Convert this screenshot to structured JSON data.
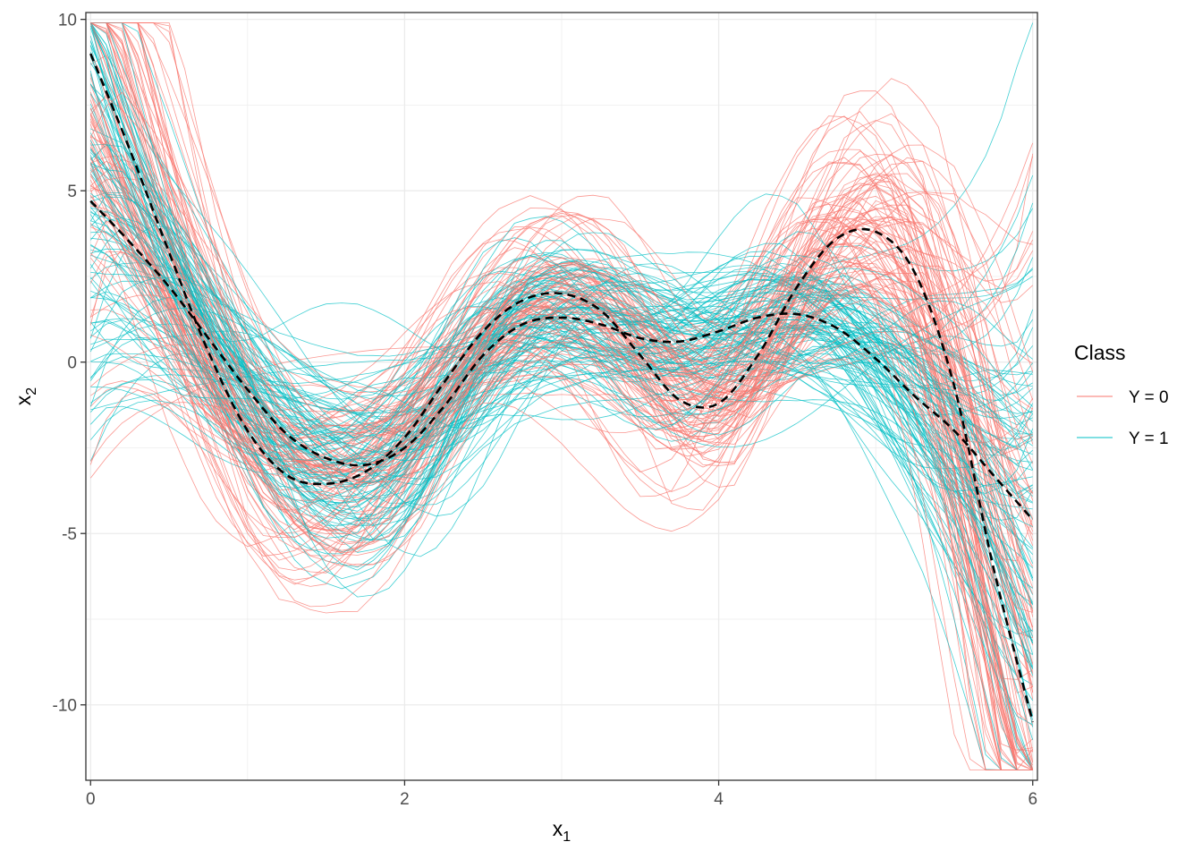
{
  "chart_data": {
    "type": "line",
    "xlabel_main": "x",
    "xlabel_sub": "1",
    "ylabel_main": "x",
    "ylabel_sub": "2",
    "xlim": [
      -0.03,
      6.03
    ],
    "ylim": [
      -12.2,
      10.2
    ],
    "x_ticks": [
      0,
      2,
      4,
      6
    ],
    "x_tick_labels": [
      "0",
      "2",
      "4",
      "6"
    ],
    "y_ticks": [
      -10,
      -5,
      0,
      5,
      10
    ],
    "y_tick_labels": [
      "-10",
      "-5",
      "0",
      "5",
      "10"
    ],
    "grid": true,
    "legend": {
      "title": "Class",
      "position": "right",
      "entries": [
        {
          "label": "Y = 0",
          "color": "#F8766D"
        },
        {
          "label": "Y = 1",
          "color": "#00BFC4"
        }
      ]
    },
    "curves_per_class": 100,
    "series": [
      {
        "name": "Y = 0",
        "color": "#F8766D",
        "style": "thin",
        "mean_curve": {
          "x": [
            0,
            0.25,
            0.5,
            0.75,
            1.0,
            1.25,
            1.5,
            1.75,
            2.0,
            2.25,
            2.5,
            2.75,
            3.0,
            3.25,
            3.5,
            3.75,
            4.0,
            4.25,
            4.5,
            4.75,
            5.0,
            5.25,
            5.5,
            5.75,
            6.0
          ],
          "y": [
            9.0,
            6.2,
            3.2,
            0.3,
            -2.0,
            -3.3,
            -3.55,
            -3.2,
            -2.2,
            -0.6,
            0.9,
            1.8,
            2.0,
            1.5,
            0.2,
            -1.1,
            -1.2,
            0.2,
            2.2,
            3.6,
            3.8,
            2.6,
            -0.7,
            -6.0,
            -10.5
          ]
        }
      },
      {
        "name": "Y = 1",
        "color": "#00BFC4",
        "style": "thin",
        "mean_curve": {
          "x": [
            0,
            0.25,
            0.5,
            0.75,
            1.0,
            1.25,
            1.5,
            1.75,
            2.0,
            2.25,
            2.5,
            2.75,
            3.0,
            3.25,
            3.5,
            3.75,
            4.0,
            4.25,
            4.5,
            4.75,
            5.0,
            5.25,
            5.5,
            5.75,
            6.0
          ],
          "y": [
            4.7,
            3.5,
            2.2,
            0.7,
            -0.8,
            -2.1,
            -2.8,
            -3.0,
            -2.5,
            -1.3,
            0.2,
            1.1,
            1.3,
            1.1,
            0.7,
            0.6,
            0.9,
            1.3,
            1.4,
            1.0,
            0.1,
            -1.0,
            -2.0,
            -3.3,
            -4.6
          ]
        }
      }
    ],
    "class_means_style": "black dashed"
  }
}
